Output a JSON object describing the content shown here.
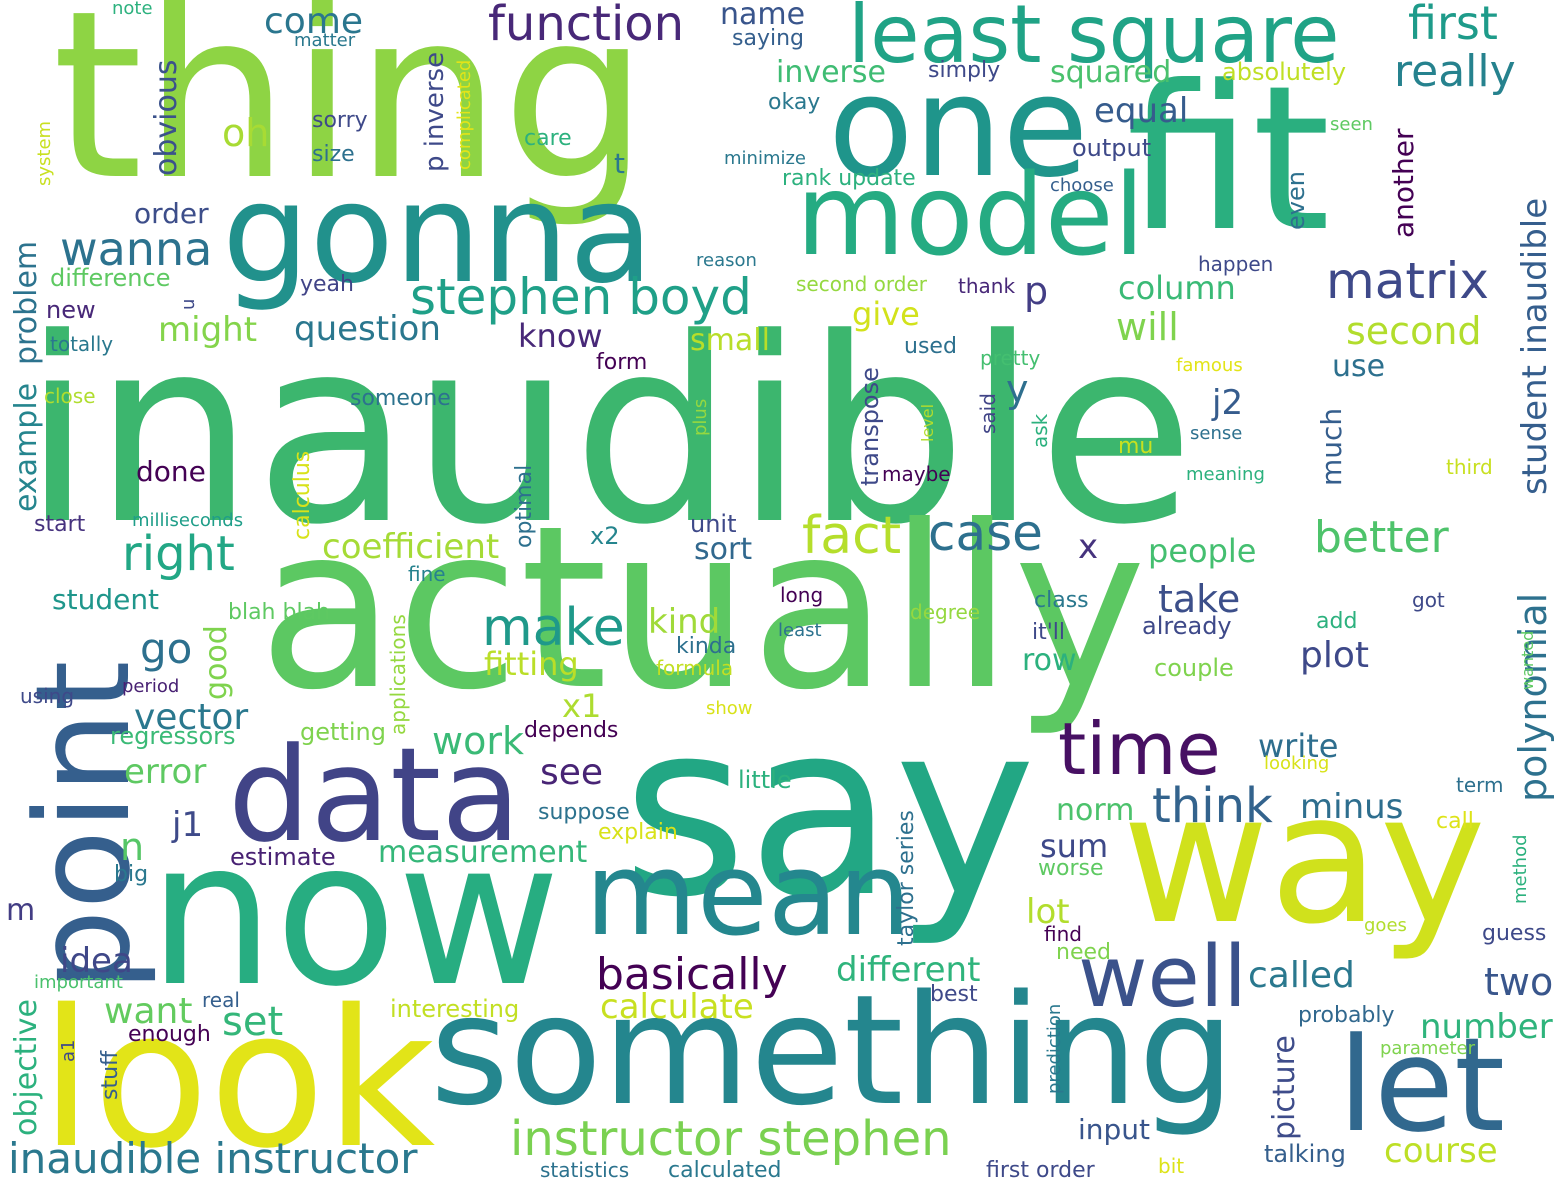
{
  "words": [
    {
      "text": "inaudible",
      "color": "#3cb66e"
    },
    {
      "text": "actually",
      "color": "#5cc862"
    },
    {
      "text": "say",
      "color": "#22a784"
    },
    {
      "text": "thing",
      "color": "#8ed444"
    },
    {
      "text": "now",
      "color": "#27ad81"
    },
    {
      "text": "fit",
      "color": "#2aaf7f"
    },
    {
      "text": "way",
      "color": "#d0e11c"
    },
    {
      "text": "look",
      "color": "#e2e418"
    },
    {
      "text": "something",
      "color": "#24868e"
    },
    {
      "text": "one",
      "color": "#1f958b"
    },
    {
      "text": "gonna",
      "color": "#21918c"
    },
    {
      "text": "model",
      "color": "#25ab82"
    },
    {
      "text": "least square",
      "color": "#20a386"
    },
    {
      "text": "data",
      "color": "#414487"
    },
    {
      "text": "point",
      "color": "#355f8d"
    },
    {
      "text": "let",
      "color": "#31688e"
    },
    {
      "text": "mean",
      "color": "#24878e"
    },
    {
      "text": "well",
      "color": "#3b528b"
    },
    {
      "text": "time",
      "color": "#471063"
    },
    {
      "text": "instructor stephen",
      "color": "#7ad151"
    },
    {
      "text": "inaudible instructor",
      "color": "#2a788e"
    },
    {
      "text": "stephen boyd",
      "color": "#1fa088"
    },
    {
      "text": "matrix",
      "color": "#3e4989"
    },
    {
      "text": "function",
      "color": "#482878"
    },
    {
      "text": "first",
      "color": "#1e9b8a"
    },
    {
      "text": "really",
      "color": "#26828e"
    },
    {
      "text": "wanna",
      "color": "#2c728e"
    },
    {
      "text": "right",
      "color": "#22a785"
    },
    {
      "text": "make",
      "color": "#1f998a"
    },
    {
      "text": "fact",
      "color": "#b5de2b"
    },
    {
      "text": "case",
      "color": "#2d708e"
    },
    {
      "text": "think",
      "color": "#33638d"
    },
    {
      "text": "basically",
      "color": "#440154"
    },
    {
      "text": "calculate",
      "color": "#c8e020"
    },
    {
      "text": "better",
      "color": "#4ec36b"
    },
    {
      "text": "polynomial",
      "color": "#2d718e"
    },
    {
      "text": "student inaudible",
      "color": "#355e8d"
    },
    {
      "text": "come",
      "color": "#2a768e"
    },
    {
      "text": "name",
      "color": "#39558c"
    },
    {
      "text": "oh",
      "color": "#a8db34"
    },
    {
      "text": "obvious",
      "color": "#3b528b"
    },
    {
      "text": "inverse",
      "color": "#3fbc73"
    },
    {
      "text": "squared",
      "color": "#4ac16d"
    },
    {
      "text": "absolutely",
      "color": "#c0df25"
    },
    {
      "text": "equal",
      "color": "#365c8d"
    },
    {
      "text": "coefficient",
      "color": "#a5db36"
    },
    {
      "text": "question",
      "color": "#2a778e"
    },
    {
      "text": "might",
      "color": "#84d44b"
    },
    {
      "text": "will",
      "color": "#7fd34e"
    },
    {
      "text": "second",
      "color": "#b2dd2d"
    },
    {
      "text": "example",
      "color": "#25858e"
    },
    {
      "text": "problem",
      "color": "#2c738e"
    },
    {
      "text": "go",
      "color": "#2d708e"
    },
    {
      "text": "vector",
      "color": "#2a788e"
    },
    {
      "text": "error",
      "color": "#5ec962"
    },
    {
      "text": "see",
      "color": "#482475"
    },
    {
      "text": "work",
      "color": "#3aba76"
    },
    {
      "text": "j1",
      "color": "#3e4a89"
    },
    {
      "text": "n",
      "color": "#56c667"
    },
    {
      "text": "measurement",
      "color": "#35b779"
    },
    {
      "text": "estimate",
      "color": "#482173"
    },
    {
      "text": "different",
      "color": "#2fb47c"
    },
    {
      "text": "want",
      "color": "#63cb5f"
    },
    {
      "text": "set",
      "color": "#34b679"
    },
    {
      "text": "idea",
      "color": "#3f4788"
    },
    {
      "text": "objective",
      "color": "#2cb17e"
    },
    {
      "text": "take",
      "color": "#3c4f8a"
    },
    {
      "text": "kind",
      "color": "#a0da39"
    },
    {
      "text": "fitting",
      "color": "#bade28"
    },
    {
      "text": "plot",
      "color": "#3e4989"
    },
    {
      "text": "x1",
      "color": "#addc30"
    },
    {
      "text": "write",
      "color": "#2e6e8e"
    },
    {
      "text": "minus",
      "color": "#2e6e8e"
    },
    {
      "text": "norm",
      "color": "#4cc26c"
    },
    {
      "text": "sum",
      "color": "#3e4989"
    },
    {
      "text": "lot",
      "color": "#b2dd2d"
    },
    {
      "text": "called",
      "color": "#2a788e"
    },
    {
      "text": "two",
      "color": "#39568c"
    },
    {
      "text": "number",
      "color": "#2fb47c"
    },
    {
      "text": "picture",
      "color": "#3e4c8a"
    },
    {
      "text": "course",
      "color": "#bddf26"
    },
    {
      "text": "input",
      "color": "#39558c"
    },
    {
      "text": "taylor series",
      "color": "#2d708e"
    },
    {
      "text": "transpose",
      "color": "#3e4989"
    },
    {
      "text": "much",
      "color": "#355e8d"
    },
    {
      "text": "j2",
      "color": "#365c8d"
    },
    {
      "text": "y",
      "color": "#2e6f8e"
    },
    {
      "text": "p",
      "color": "#433e85"
    },
    {
      "text": "column",
      "color": "#3aba76"
    },
    {
      "text": "give",
      "color": "#d2e21b"
    },
    {
      "text": "small",
      "color": "#b8de29"
    },
    {
      "text": "know",
      "color": "#482878"
    },
    {
      "text": "people",
      "color": "#44bf70"
    },
    {
      "text": "x",
      "color": "#46337e"
    },
    {
      "text": "sort",
      "color": "#31688e"
    },
    {
      "text": "unit",
      "color": "#3e4989"
    },
    {
      "text": "good",
      "color": "#7fd34e"
    },
    {
      "text": "student",
      "color": "#1f968b"
    },
    {
      "text": "order",
      "color": "#3d4e8a"
    },
    {
      "text": "difference",
      "color": "#5ec962"
    },
    {
      "text": "yeah",
      "color": "#414487"
    },
    {
      "text": "new",
      "color": "#482878"
    },
    {
      "text": "totally",
      "color": "#2a788e"
    },
    {
      "text": "close",
      "color": "#b0dd2f"
    },
    {
      "text": "someone",
      "color": "#2c728e"
    },
    {
      "text": "done",
      "color": "#440154"
    },
    {
      "text": "calculus",
      "color": "#d8e219"
    },
    {
      "text": "optimal",
      "color": "#2d708e"
    },
    {
      "text": "start",
      "color": "#46327e"
    },
    {
      "text": "milliseconds",
      "color": "#1f9e89"
    },
    {
      "text": "x2",
      "color": "#25858e"
    },
    {
      "text": "fine",
      "color": "#26828e"
    },
    {
      "text": "applications",
      "color": "#95d840"
    },
    {
      "text": "blah blah",
      "color": "#5ec962"
    },
    {
      "text": "getting",
      "color": "#7fd34e"
    },
    {
      "text": "regressors",
      "color": "#3aba76"
    },
    {
      "text": "depends",
      "color": "#440154"
    },
    {
      "text": "suppose",
      "color": "#2c728e"
    },
    {
      "text": "explain",
      "color": "#d8e219"
    },
    {
      "text": "big",
      "color": "#2a788e"
    },
    {
      "text": "period",
      "color": "#482173"
    },
    {
      "text": "using",
      "color": "#3e4989"
    },
    {
      "text": "m",
      "color": "#433d84"
    },
    {
      "text": "important",
      "color": "#4ac16d"
    },
    {
      "text": "real",
      "color": "#355f8d"
    },
    {
      "text": "enough",
      "color": "#440154"
    },
    {
      "text": "a1",
      "color": "#3e4989"
    },
    {
      "text": "stuff",
      "color": "#355f8d"
    },
    {
      "text": "interesting",
      "color": "#c2df23"
    },
    {
      "text": "statistics",
      "color": "#2c728e"
    },
    {
      "text": "calculated",
      "color": "#2a788e"
    },
    {
      "text": "first order",
      "color": "#3e4989"
    },
    {
      "text": "bit",
      "color": "#dde318"
    },
    {
      "text": "talking",
      "color": "#355f8d"
    },
    {
      "text": "prediction",
      "color": "#2a788e"
    },
    {
      "text": "best",
      "color": "#3e4989"
    },
    {
      "text": "need",
      "color": "#7fd34e"
    },
    {
      "text": "find",
      "color": "#440154"
    },
    {
      "text": "probably",
      "color": "#31688e"
    },
    {
      "text": "parameter",
      "color": "#7fd34e"
    },
    {
      "text": "goes",
      "color": "#b2dd2d"
    },
    {
      "text": "guess",
      "color": "#3e4989"
    },
    {
      "text": "worse",
      "color": "#5ec962"
    },
    {
      "text": "method",
      "color": "#2cb17e"
    },
    {
      "text": "term",
      "color": "#2d708e"
    },
    {
      "text": "call",
      "color": "#dde318"
    },
    {
      "text": "looking",
      "color": "#d8e219"
    },
    {
      "text": "wanted",
      "color": "#5ec962"
    },
    {
      "text": "got",
      "color": "#3e4989"
    },
    {
      "text": "add",
      "color": "#2cb17e"
    },
    {
      "text": "couple",
      "color": "#7fd34e"
    },
    {
      "text": "already",
      "color": "#3e4989"
    },
    {
      "text": "class",
      "color": "#2a788e"
    },
    {
      "text": "it'll",
      "color": "#3e4989"
    },
    {
      "text": "row",
      "color": "#2cb17e"
    },
    {
      "text": "degree",
      "color": "#95d840"
    },
    {
      "text": "long",
      "color": "#440154"
    },
    {
      "text": "least",
      "color": "#2c728e"
    },
    {
      "text": "kinda",
      "color": "#2d708e"
    },
    {
      "text": "formula",
      "color": "#c2df23"
    },
    {
      "text": "show",
      "color": "#d8e219"
    },
    {
      "text": "little",
      "color": "#2cb17e"
    },
    {
      "text": "maybe",
      "color": "#440154"
    },
    {
      "text": "level",
      "color": "#b2dd2d"
    },
    {
      "text": "plus",
      "color": "#95d840"
    },
    {
      "text": "said",
      "color": "#414487"
    },
    {
      "text": "ask",
      "color": "#2cb17e"
    },
    {
      "text": "mu",
      "color": "#c8e020"
    },
    {
      "text": "sense",
      "color": "#2d708e"
    },
    {
      "text": "meaning",
      "color": "#2cb17e"
    },
    {
      "text": "third",
      "color": "#c8e020"
    },
    {
      "text": "famous",
      "color": "#e2e418"
    },
    {
      "text": "pretty",
      "color": "#44bf70"
    },
    {
      "text": "used",
      "color": "#2d708e"
    },
    {
      "text": "form",
      "color": "#440154"
    },
    {
      "text": "thank",
      "color": "#482878"
    },
    {
      "text": "happen",
      "color": "#3e4989"
    },
    {
      "text": "second order",
      "color": "#95d840"
    },
    {
      "text": "reason",
      "color": "#2a788e"
    },
    {
      "text": "choose",
      "color": "#355f8d"
    },
    {
      "text": "output",
      "color": "#3e4989"
    },
    {
      "text": "minimize",
      "color": "#2a788e"
    },
    {
      "text": "rank update",
      "color": "#2cb17e"
    },
    {
      "text": "okay",
      "color": "#2a788e"
    },
    {
      "text": "simply",
      "color": "#3e4989"
    },
    {
      "text": "saying",
      "color": "#355f8d"
    },
    {
      "text": "care",
      "color": "#2cb17e"
    },
    {
      "text": "t",
      "color": "#2a788e"
    },
    {
      "text": "sorry",
      "color": "#3e4989"
    },
    {
      "text": "size",
      "color": "#2d708e"
    },
    {
      "text": "p inverse",
      "color": "#3e4989"
    },
    {
      "text": "complicated",
      "color": "#e2e418"
    },
    {
      "text": "matter",
      "color": "#2a788e"
    },
    {
      "text": "note",
      "color": "#2cb17e"
    },
    {
      "text": "system",
      "color": "#c8e020"
    },
    {
      "text": "u",
      "color": "#3e4989"
    },
    {
      "text": "seen",
      "color": "#5ec962"
    },
    {
      "text": "another",
      "color": "#440154"
    },
    {
      "text": "even",
      "color": "#2d708e"
    },
    {
      "text": "use",
      "color": "#2d708e"
    }
  ]
}
